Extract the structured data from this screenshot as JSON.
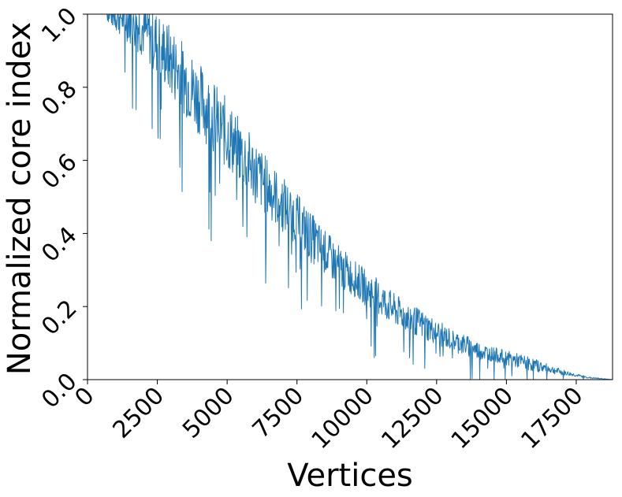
{
  "chart_data": {
    "type": "line",
    "title": "",
    "xlabel": "Vertices",
    "ylabel": "Normalized core index",
    "xlim": [
      0,
      18800
    ],
    "ylim": [
      0.0,
      1.0
    ],
    "grid": false,
    "legend": "none",
    "line_color": "#1f77b4",
    "x_ticks": [
      {
        "value": 0,
        "label": "0"
      },
      {
        "value": 2500,
        "label": "2500"
      },
      {
        "value": 5000,
        "label": "5000"
      },
      {
        "value": 7500,
        "label": "7500"
      },
      {
        "value": 10000,
        "label": "10000"
      },
      {
        "value": 12500,
        "label": "12500"
      },
      {
        "value": 15000,
        "label": "15000"
      },
      {
        "value": 17500,
        "label": "17500"
      }
    ],
    "y_ticks": [
      {
        "value": 0.0,
        "label": "0.0"
      },
      {
        "value": 0.2,
        "label": "0.2"
      },
      {
        "value": 0.4,
        "label": "0.4"
      },
      {
        "value": 0.6,
        "label": "0.6"
      },
      {
        "value": 0.8,
        "label": "0.8"
      },
      {
        "value": 1.0,
        "label": "1.0"
      }
    ],
    "series": [
      {
        "x": [
          0,
          500,
          1000,
          1500,
          2000,
          2500,
          3000,
          3500,
          4000,
          4500,
          5000,
          5500,
          6000,
          6500,
          7000,
          7500,
          8000,
          8500,
          9000,
          9500,
          10000,
          10500,
          11000,
          11500,
          12000,
          12500,
          13000,
          13500,
          14000,
          14500,
          15000,
          15500,
          16000,
          16500,
          17000,
          17500,
          18000,
          18500,
          18800
        ],
        "y": [
          1.0,
          1.0,
          1.0,
          0.99,
          0.96,
          0.92,
          0.87,
          0.82,
          0.77,
          0.72,
          0.67,
          0.62,
          0.57,
          0.52,
          0.48,
          0.44,
          0.39,
          0.35,
          0.31,
          0.28,
          0.25,
          0.22,
          0.19,
          0.17,
          0.15,
          0.13,
          0.11,
          0.095,
          0.08,
          0.07,
          0.06,
          0.05,
          0.04,
          0.03,
          0.02,
          0.012,
          0.005,
          0.002,
          0.0
        ],
        "noise_amplitude": [
          0.0,
          0.0,
          0.05,
          0.07,
          0.08,
          0.09,
          0.1,
          0.1,
          0.1,
          0.1,
          0.1,
          0.09,
          0.09,
          0.08,
          0.08,
          0.07,
          0.07,
          0.06,
          0.06,
          0.05,
          0.05,
          0.05,
          0.045,
          0.04,
          0.04,
          0.035,
          0.03,
          0.03,
          0.025,
          0.02,
          0.02,
          0.02,
          0.018,
          0.012,
          0.008,
          0.004,
          0.002,
          0.001,
          0.0
        ]
      }
    ]
  }
}
